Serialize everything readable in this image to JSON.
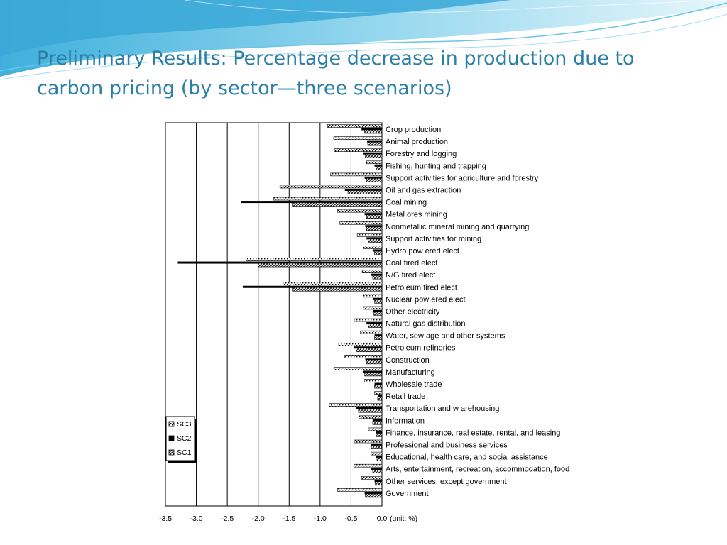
{
  "slide": {
    "title": "Preliminary Results: Percentage decrease in production due to carbon pricing (by sector—three scenarios)"
  },
  "colors": {
    "title": "#2a7fa8",
    "header_wave": "#4fb9df",
    "header_wave_light": "#a9e0f2",
    "bar_black": "#000000"
  },
  "chart_data": {
    "type": "bar",
    "orientation": "horizontal",
    "categories": [
      "Crop production",
      "Animal production",
      "Forestry and logging",
      "Fishing, hunting and trapping",
      "Support activities for agriculture and forestry",
      "Oil and gas extraction",
      "Coal mining",
      "Metal ores mining",
      "Nonmetallic mineral mining and quarrying",
      "Support activities for mining",
      "Hydro pow ered elect",
      "Coal fired elect",
      "N/G fired elect",
      "Petroleum fired elect",
      "Nuclear pow ered elect",
      "Other electricity",
      "Natural gas distribution",
      "Water, sew age and other systems",
      "Petroleum refineries",
      "Construction",
      "Manufacturing",
      "Wholesale trade",
      "Retail trade",
      "Transportation and w arehousing",
      "Information",
      "Finance, insurance, real estate, rental, and leasing",
      "Professional and business services",
      "Educational, health care, and social assistance",
      "Arts, entertainment, recreation, accommodation, food",
      "Other services, except government",
      "Government"
    ],
    "series": [
      {
        "name": "SC3",
        "pattern": "dotted",
        "values": [
          -0.88,
          -0.78,
          -0.77,
          -0.25,
          -0.83,
          -1.65,
          -1.75,
          -0.72,
          -0.68,
          -0.4,
          -0.3,
          -2.2,
          -0.32,
          -1.6,
          -0.3,
          -0.3,
          -0.45,
          -0.35,
          -0.7,
          -0.6,
          -0.77,
          -0.28,
          -0.12,
          -0.85,
          -0.37,
          -0.22,
          -0.45,
          -0.18,
          -0.45,
          -0.33,
          -0.72
        ]
      },
      {
        "name": "SC2",
        "pattern": "solid",
        "values": [
          -0.33,
          -0.24,
          -0.3,
          -0.12,
          -0.28,
          -0.6,
          -2.28,
          -0.28,
          -0.27,
          -0.25,
          -0.15,
          -3.3,
          -0.18,
          -2.25,
          -0.15,
          -0.15,
          -0.25,
          -0.12,
          -0.45,
          -0.27,
          -0.3,
          -0.12,
          -0.07,
          -0.42,
          -0.15,
          -0.1,
          -0.18,
          -0.1,
          -0.18,
          -0.12,
          -0.28
        ]
      },
      {
        "name": "SC1",
        "pattern": "hatched",
        "values": [
          -0.28,
          -0.23,
          -0.27,
          -0.1,
          -0.25,
          -0.55,
          -1.45,
          -0.25,
          -0.25,
          -0.22,
          -0.12,
          -2.0,
          -0.15,
          -1.45,
          -0.12,
          -0.13,
          -0.22,
          -0.12,
          -0.42,
          -0.25,
          -0.28,
          -0.12,
          -0.07,
          -0.38,
          -0.15,
          -0.1,
          -0.17,
          -0.08,
          -0.15,
          -0.11,
          -0.27
        ]
      }
    ],
    "xlim": [
      -3.5,
      0.0
    ],
    "x_ticks": [
      "-3.5",
      "-3.0",
      "-2.5",
      "-2.0",
      "-1.5",
      "-1.0",
      "-0.5",
      "0.0"
    ],
    "x_unit_label": "(unit: %)",
    "grid": "vertical lines at 0.5 intervals",
    "legend": {
      "placement": "bottom-left",
      "entries": [
        "SC3",
        "SC2",
        "SC1"
      ]
    }
  }
}
